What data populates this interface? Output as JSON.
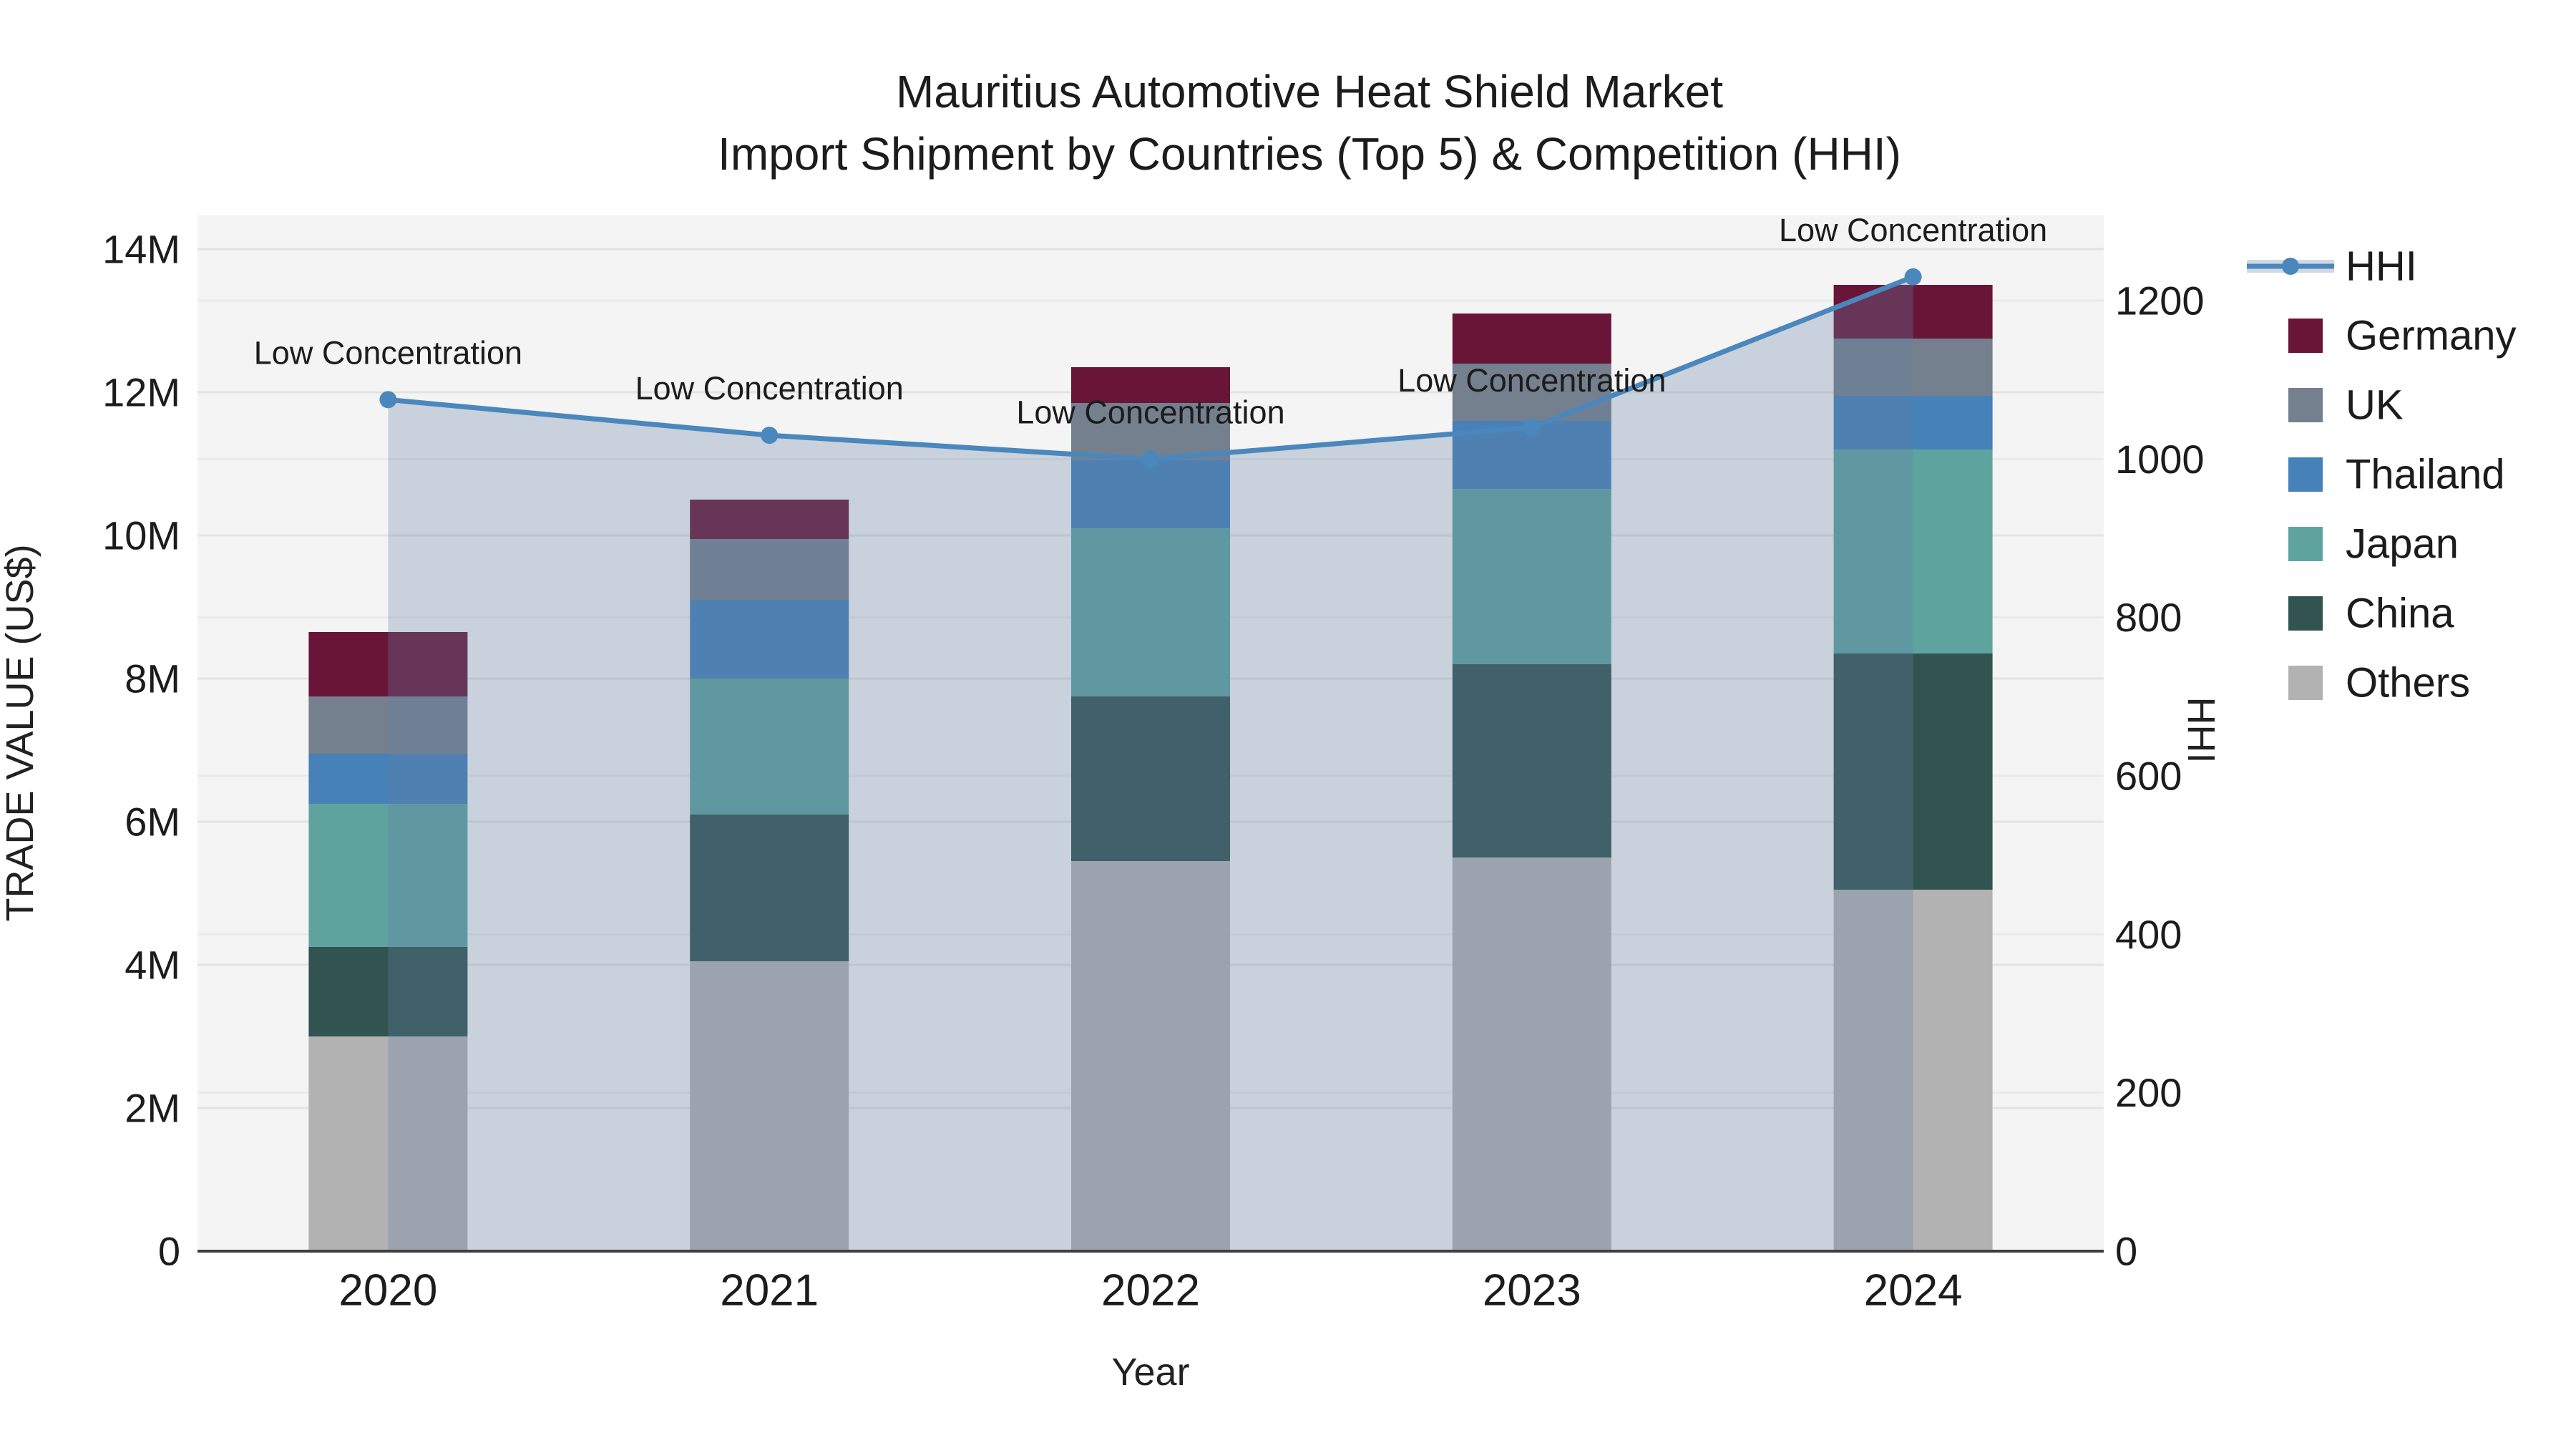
{
  "chart_data": {
    "type": "bar",
    "subtype": "stacked-bar-with-line",
    "title_line1": "Mauritius Automotive Heat Shield Market",
    "title_line2": "Import Shipment by Countries (Top 5) & Competition (HHI)",
    "xlabel": "Year",
    "ylabel": "TRADE VALUE (US$)",
    "y2label": "HHI",
    "categories": [
      "2020",
      "2021",
      "2022",
      "2023",
      "2024"
    ],
    "value_unit": "million US$",
    "stack_order_bottom_to_top": [
      "Others",
      "China",
      "Japan",
      "Thailand",
      "UK",
      "Germany"
    ],
    "series": [
      {
        "name": "Germany",
        "color": "#691537",
        "values_musd": [
          0.9,
          0.55,
          0.5,
          0.7,
          0.75
        ]
      },
      {
        "name": "UK",
        "color": "#74808e",
        "values_musd": [
          0.8,
          0.85,
          0.8,
          0.8,
          0.8
        ]
      },
      {
        "name": "Thailand",
        "color": "#4681b7",
        "values_musd": [
          0.7,
          1.1,
          0.95,
          0.95,
          0.75
        ]
      },
      {
        "name": "Japan",
        "color": "#5fa39f",
        "values_musd": [
          2.0,
          1.9,
          2.35,
          2.45,
          2.85
        ]
      },
      {
        "name": "China",
        "color": "#325450",
        "values_musd": [
          1.25,
          2.05,
          2.3,
          2.7,
          3.3
        ]
      },
      {
        "name": "Others",
        "color": "#b2b2b2",
        "values_musd": [
          3.0,
          4.05,
          5.45,
          5.5,
          5.05
        ]
      }
    ],
    "line_series": {
      "name": "HHI",
      "color": "#4a87bc",
      "fill_color": "rgba(100,130,165,0.30)",
      "values": [
        1075,
        1030,
        1000,
        1040,
        1230
      ]
    },
    "annotations": [
      {
        "text": "Low Concentration",
        "x": "2020"
      },
      {
        "text": "Low Concentration",
        "x": "2021"
      },
      {
        "text": "Low Concentration",
        "x": "2022"
      },
      {
        "text": "Low Concentration",
        "x": "2023"
      },
      {
        "text": "Low Concentration",
        "x": "2024"
      }
    ],
    "y_axis": {
      "tick_labels": [
        "0",
        "2M",
        "4M",
        "6M",
        "8M",
        "10M",
        "12M",
        "14M"
      ],
      "tick_values_musd": [
        0,
        2,
        4,
        6,
        8,
        10,
        12,
        14
      ]
    },
    "y2_axis": {
      "tick_labels": [
        "0",
        "200",
        "400",
        "600",
        "800",
        "1000",
        "1200"
      ],
      "tick_values": [
        0,
        200,
        400,
        600,
        800,
        1000,
        1200
      ]
    },
    "legend": {
      "order": [
        "HHI",
        "Germany",
        "UK",
        "Thailand",
        "Japan",
        "China",
        "Others"
      ]
    },
    "colors": {
      "plot_background": "#f4f4f4",
      "gridline_y1": "#e3e3e3",
      "gridline_y2": "#eaeaea",
      "axis_line": "#3f3f3f",
      "text": "#1c1c1c"
    }
  }
}
